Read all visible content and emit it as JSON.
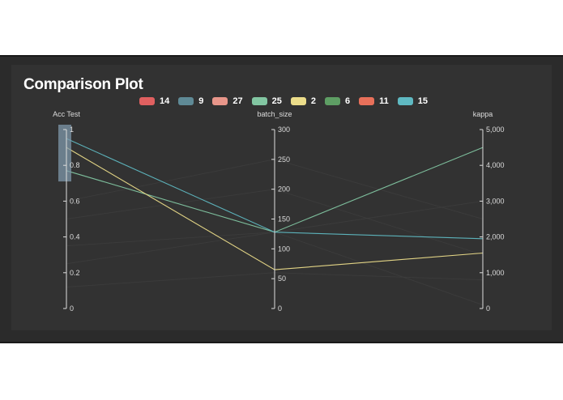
{
  "title": "Comparison Plot",
  "colors": {
    "frame": "#2b2b2b",
    "panel": "#323232",
    "text": "#ffffff",
    "axis": "#dddddd",
    "brush": "#7f98ab"
  },
  "legend": [
    {
      "label": "14",
      "color": "#e06060"
    },
    {
      "label": "9",
      "color": "#5f8a96"
    },
    {
      "label": "27",
      "color": "#e8968a"
    },
    {
      "label": "25",
      "color": "#82c6a2"
    },
    {
      "label": "2",
      "color": "#ecdd8a"
    },
    {
      "label": "6",
      "color": "#5e9e64"
    },
    {
      "label": "11",
      "color": "#e8705a"
    },
    {
      "label": "15",
      "color": "#5fb9c2"
    }
  ],
  "chart_data": {
    "type": "parallel_coordinates",
    "title": "Comparison Plot",
    "axes": [
      {
        "key": "acc_test",
        "label": "Acc Test",
        "range": [
          0,
          1
        ],
        "ticks": [
          0,
          0.2,
          0.4,
          0.6,
          0.8,
          1
        ],
        "tick_labels": [
          "0",
          "0.2",
          "0.4",
          "0.6",
          "0.8",
          "1"
        ]
      },
      {
        "key": "batch_size",
        "label": "batch_size",
        "range": [
          0,
          300
        ],
        "ticks": [
          0,
          50,
          100,
          150,
          200,
          250,
          300
        ],
        "tick_labels": [
          "0",
          "50",
          "100",
          "150",
          "200",
          "250",
          "300"
        ]
      },
      {
        "key": "kappa",
        "label": "kappa",
        "range": [
          0,
          5000
        ],
        "ticks": [
          0,
          1000,
          2000,
          3000,
          4000,
          5000
        ],
        "tick_labels": [
          "0",
          "1,000",
          "2,000",
          "3,000",
          "4,000",
          "5,000"
        ]
      }
    ],
    "brush": {
      "axis": "acc_test",
      "range": [
        0.71,
        1.0
      ]
    },
    "series": [
      {
        "name": "25",
        "highlighted": true,
        "values": [
          0.77,
          128,
          4500
        ]
      },
      {
        "name": "15",
        "highlighted": true,
        "values": [
          0.95,
          128,
          1950
        ]
      },
      {
        "name": "2",
        "highlighted": true,
        "values": [
          0.9,
          65,
          1550
        ]
      },
      {
        "name": "14",
        "highlighted": false,
        "values": [
          0.35,
          128,
          100
        ]
      },
      {
        "name": "9",
        "highlighted": false,
        "values": [
          0.5,
          200,
          1500
        ]
      },
      {
        "name": "27",
        "highlighted": false,
        "values": [
          0.12,
          60,
          800
        ]
      },
      {
        "name": "6",
        "highlighted": false,
        "values": [
          0.25,
          128,
          3000
        ]
      },
      {
        "name": "11",
        "highlighted": false,
        "values": [
          0.6,
          250,
          2500
        ]
      }
    ]
  }
}
